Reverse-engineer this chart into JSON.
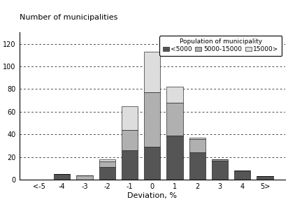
{
  "categories": [
    "<-5",
    "-4",
    "-3",
    "-2",
    "-1",
    "0",
    "1",
    "2",
    "3",
    "4",
    "5>"
  ],
  "small": [
    0,
    5,
    0,
    11,
    26,
    29,
    39,
    24,
    17,
    8,
    3
  ],
  "medium": [
    0,
    0,
    4,
    5,
    18,
    48,
    29,
    12,
    1,
    0,
    0
  ],
  "large": [
    0,
    0,
    0,
    2,
    21,
    36,
    14,
    1,
    0,
    0,
    0
  ],
  "colors_small": "#555555",
  "colors_medium": "#b0b0b0",
  "colors_large": "#dddddd",
  "ylabel": "Number of municipalities",
  "xlabel": "Deviation, %",
  "ylim": [
    0,
    130
  ],
  "yticks": [
    0,
    20,
    40,
    60,
    80,
    100,
    120
  ],
  "legend_title": "Population of municipality",
  "legend_labels": [
    "<5000",
    "5000-15000",
    "15000>"
  ],
  "grid_color": "#000000"
}
